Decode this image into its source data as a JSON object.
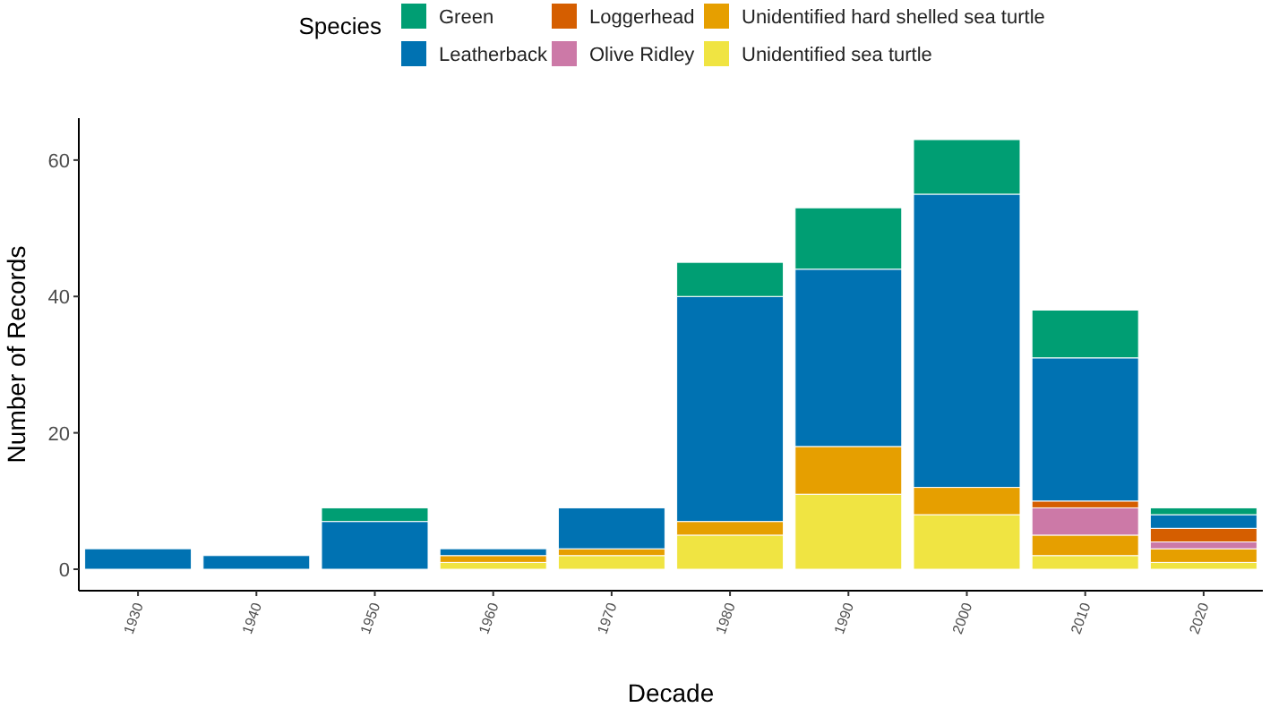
{
  "chart_data": {
    "type": "bar",
    "stacked": true,
    "xlabel": "Decade",
    "ylabel": "Number of Records",
    "legend_title": "Species",
    "legend": "top",
    "grid": false,
    "categories": [
      "1930",
      "1940",
      "1950",
      "1960",
      "1970",
      "1980",
      "1990",
      "2000",
      "2010",
      "2020"
    ],
    "ylim": [
      -3.15,
      66.15
    ],
    "yticks": [
      0,
      20,
      40,
      60
    ],
    "series": [
      {
        "name": "Unidentified sea turtle",
        "color": "#f0e442",
        "values": [
          0,
          0,
          0,
          1,
          2,
          5,
          11,
          8,
          2,
          1
        ]
      },
      {
        "name": "Unidentified hard shelled sea turtle",
        "color": "#e69f00",
        "values": [
          0,
          0,
          0,
          1,
          1,
          2,
          7,
          4,
          3,
          2
        ]
      },
      {
        "name": "Olive Ridley",
        "color": "#cc79a7",
        "values": [
          0,
          0,
          0,
          0,
          0,
          0,
          0,
          0,
          4,
          1
        ]
      },
      {
        "name": "Loggerhead",
        "color": "#d55e00",
        "values": [
          0,
          0,
          0,
          0,
          0,
          0,
          0,
          0,
          1,
          2
        ]
      },
      {
        "name": "Leatherback",
        "color": "#0072b2",
        "values": [
          3,
          2,
          7,
          1,
          6,
          33,
          26,
          43,
          21,
          2
        ]
      },
      {
        "name": "Green",
        "color": "#009e73",
        "values": [
          0,
          0,
          2,
          0,
          0,
          5,
          9,
          8,
          7,
          1
        ]
      }
    ]
  }
}
